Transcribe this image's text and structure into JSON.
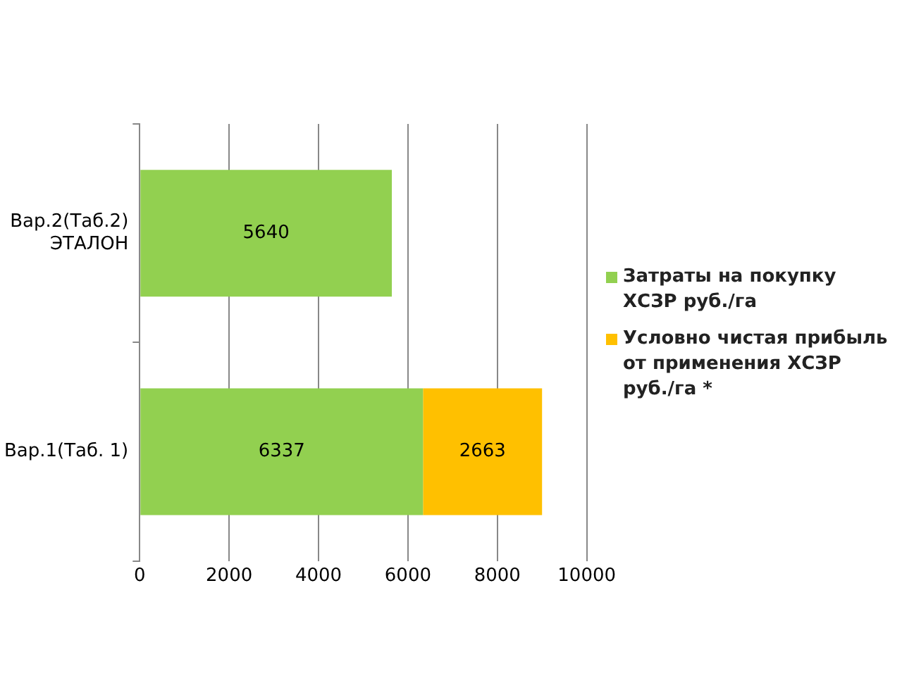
{
  "chart_data": {
    "type": "bar",
    "orientation": "horizontal",
    "stacked": true,
    "categories": [
      "Вар.2(Таб.2)\nЭТАЛОН",
      "Вар.1(Таб. 1)"
    ],
    "series": [
      {
        "name": "Затраты на покупку ХСЗР руб./га",
        "color": "#92d050",
        "values": [
          5640,
          6337
        ]
      },
      {
        "name": "Условно чистая прибыль от применения ХСЗР руб./га *",
        "color": "#ffc000",
        "values": [
          null,
          2663
        ]
      }
    ],
    "xlim": [
      0,
      10000
    ],
    "xticks": [
      0,
      2000,
      4000,
      6000,
      8000,
      10000
    ],
    "grid": "x",
    "legend": "right",
    "data_labels": true
  }
}
